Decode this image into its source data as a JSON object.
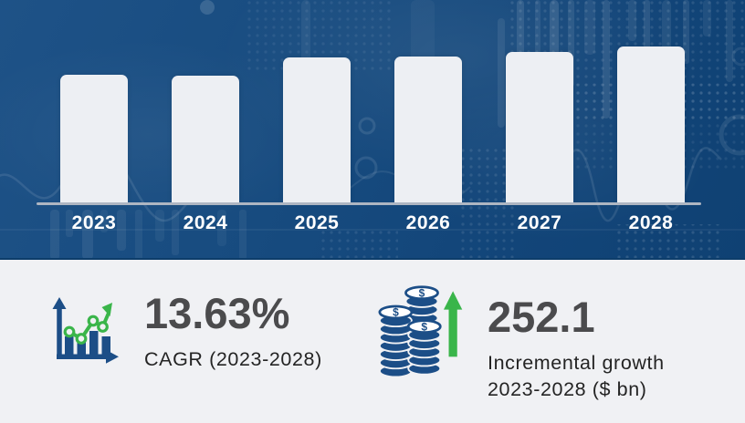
{
  "chart_data": {
    "type": "bar",
    "categories": [
      "2023",
      "2024",
      "2025",
      "2026",
      "2027",
      "2028"
    ],
    "values": [
      140,
      139,
      159,
      160,
      165,
      171
    ],
    "values_note": "relative bar heights in pixels; chart shows no numeric y-axis",
    "title": "",
    "xlabel": "",
    "ylabel": "",
    "ylim": [
      0,
      185
    ],
    "grid": false,
    "legend": false,
    "bar_color": "#EDEFF3",
    "background_color": "#154A7E"
  },
  "stats": {
    "cagr": {
      "value": "13.63%",
      "label": "CAGR (2023-2028)",
      "icon": "bar-chart-growth-icon"
    },
    "incremental": {
      "value": "252.1",
      "label_line1": "Incremental growth",
      "label_line2": "2023-2028 ($ bn)",
      "icon": "coin-stack-icon"
    }
  },
  "colors": {
    "hero_bg": "#154A7E",
    "bar_fill": "#EDEFF3",
    "baseline": "#AEB6C2",
    "year_label": "#FFFFFF",
    "panel_bg": "#F0F1F4",
    "stat_value": "#4B4B4D",
    "stat_label": "#242424",
    "icon_blue": "#1C4E87",
    "accent_green": "#3AB54A"
  }
}
